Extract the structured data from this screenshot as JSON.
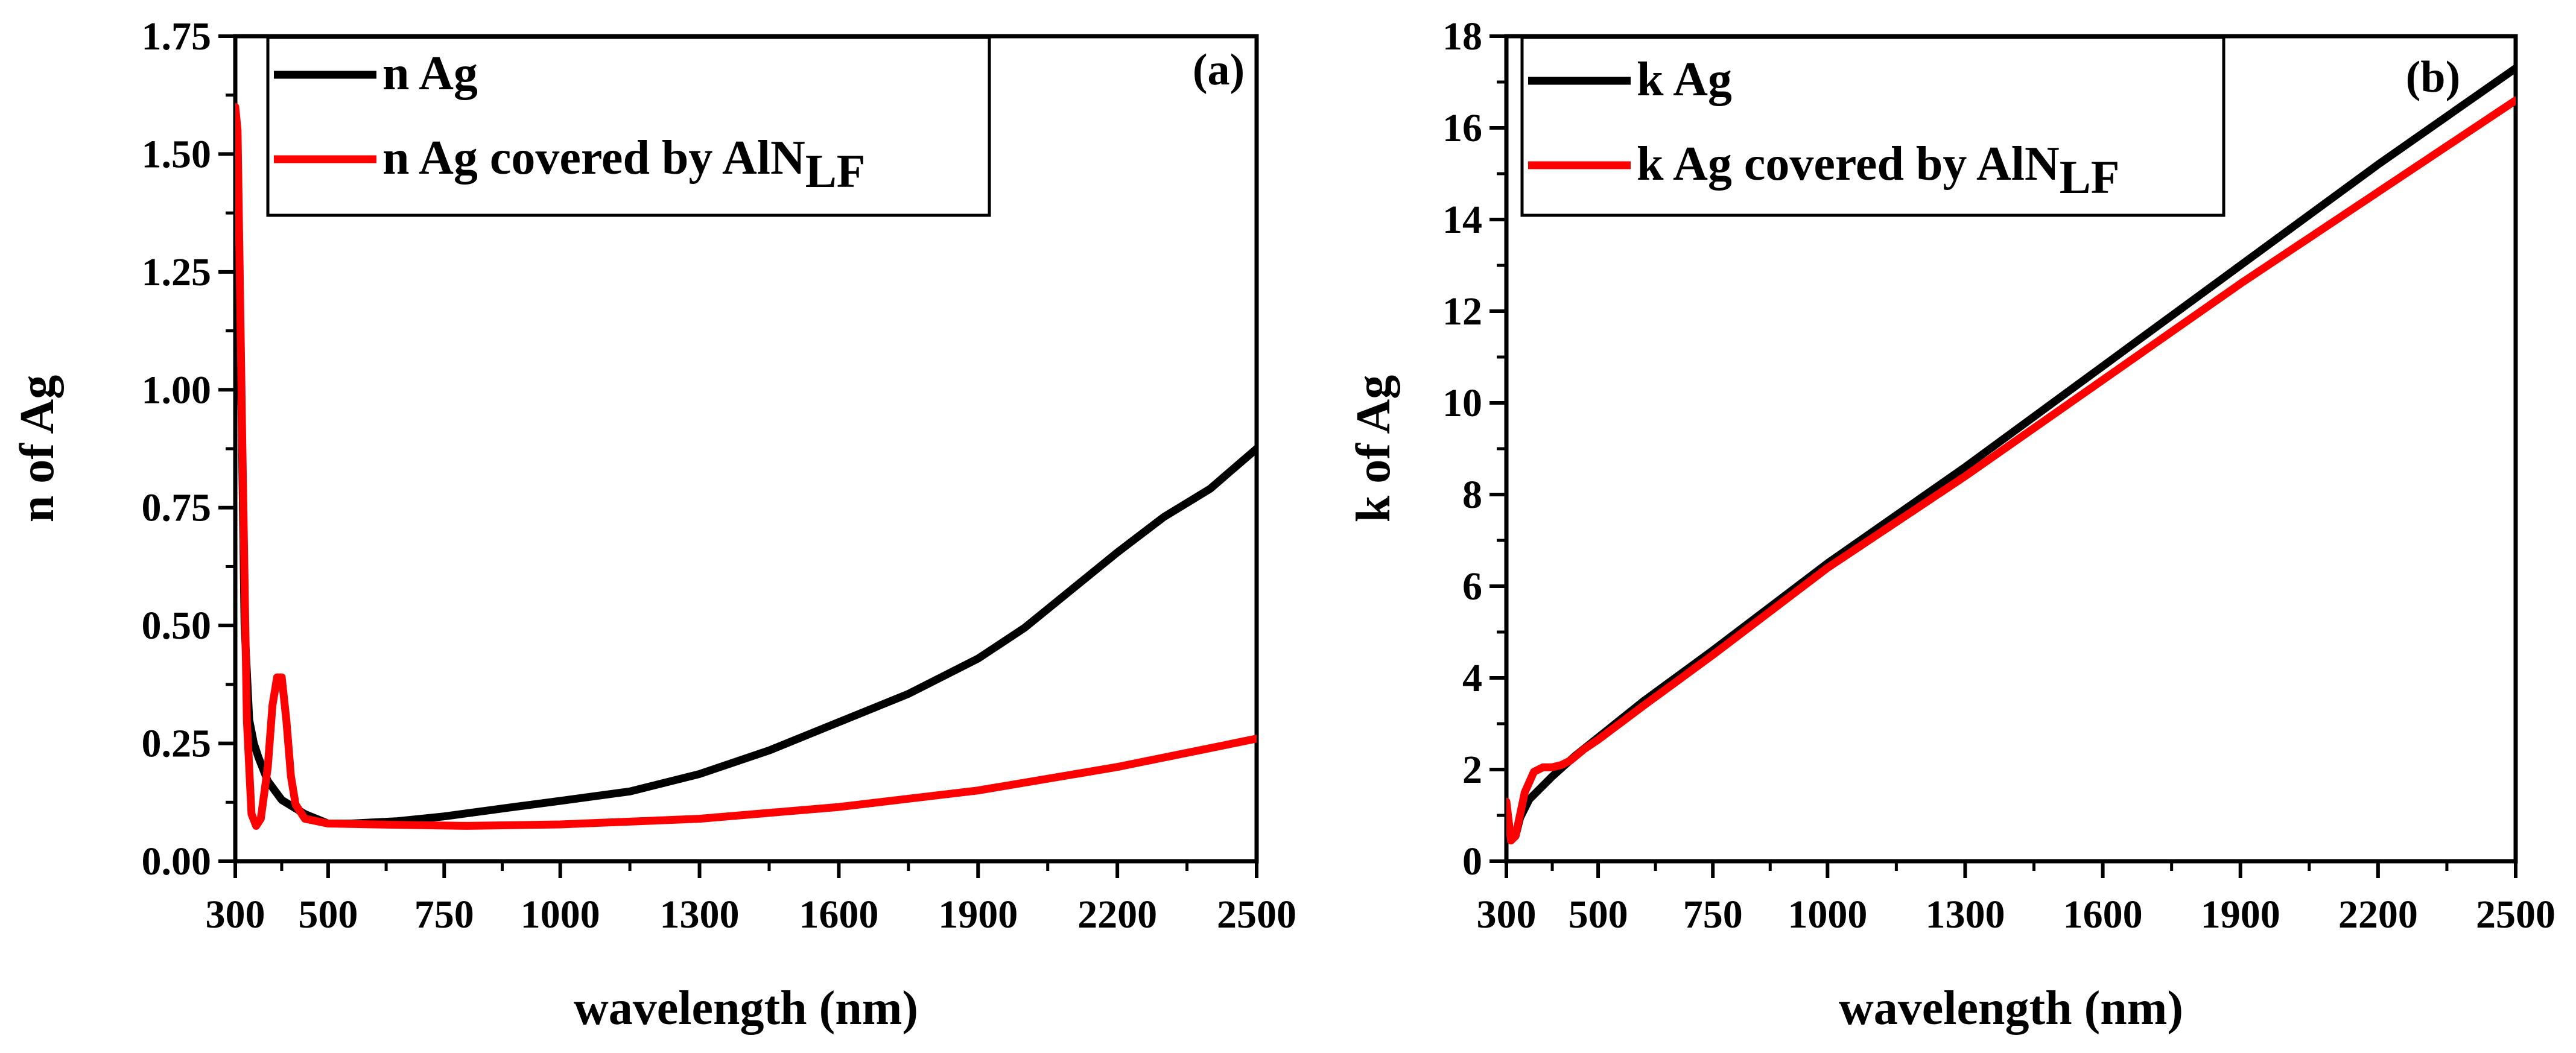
{
  "chart_data": [
    {
      "type": "line",
      "panel_label": "(a)",
      "xlabel": "wavelength (nm)",
      "ylabel": "n of Ag",
      "xlim": [
        300,
        2500
      ],
      "ylim": [
        0,
        1.75
      ],
      "xticks": [
        300,
        500,
        750,
        1000,
        1300,
        1600,
        1900,
        2200,
        2500
      ],
      "yticks": [
        "0.00",
        "0.25",
        "0.50",
        "0.75",
        "1.00",
        "1.25",
        "1.50",
        "1.75"
      ],
      "legend_position": "top-left",
      "series": [
        {
          "name": "n Ag",
          "color": "#000000",
          "points": [
            [
              300,
              1.58
            ],
            [
              310,
              1.2
            ],
            [
              320,
              0.5
            ],
            [
              330,
              0.3
            ],
            [
              340,
              0.25
            ],
            [
              350,
              0.22
            ],
            [
              370,
              0.17
            ],
            [
              400,
              0.13
            ],
            [
              450,
              0.1
            ],
            [
              500,
              0.08
            ],
            [
              550,
              0.08
            ],
            [
              650,
              0.085
            ],
            [
              750,
              0.095
            ],
            [
              900,
              0.115
            ],
            [
              1000,
              0.128
            ],
            [
              1150,
              0.148
            ],
            [
              1300,
              0.185
            ],
            [
              1450,
              0.235
            ],
            [
              1600,
              0.295
            ],
            [
              1750,
              0.355
            ],
            [
              1900,
              0.43
            ],
            [
              2000,
              0.495
            ],
            [
              2100,
              0.575
            ],
            [
              2200,
              0.655
            ],
            [
              2300,
              0.73
            ],
            [
              2400,
              0.79
            ],
            [
              2500,
              0.875
            ]
          ]
        },
        {
          "name": "n Ag covered by AlN",
          "name_subscript": "LF",
          "color": "#ff0000",
          "points": [
            [
              300,
              1.6
            ],
            [
              305,
              1.55
            ],
            [
              315,
              0.9
            ],
            [
              325,
              0.3
            ],
            [
              335,
              0.1
            ],
            [
              345,
              0.075
            ],
            [
              355,
              0.09
            ],
            [
              370,
              0.2
            ],
            [
              380,
              0.33
            ],
            [
              390,
              0.39
            ],
            [
              400,
              0.39
            ],
            [
              410,
              0.3
            ],
            [
              420,
              0.18
            ],
            [
              430,
              0.12
            ],
            [
              450,
              0.09
            ],
            [
              500,
              0.08
            ],
            [
              600,
              0.078
            ],
            [
              800,
              0.075
            ],
            [
              1000,
              0.078
            ],
            [
              1300,
              0.09
            ],
            [
              1600,
              0.115
            ],
            [
              1900,
              0.15
            ],
            [
              2200,
              0.2
            ],
            [
              2500,
              0.26
            ]
          ]
        }
      ]
    },
    {
      "type": "line",
      "panel_label": "(b)",
      "xlabel": "wavelength (nm)",
      "ylabel": "k of Ag",
      "xlim": [
        300,
        2500
      ],
      "ylim": [
        0,
        18
      ],
      "xticks": [
        300,
        500,
        750,
        1000,
        1300,
        1600,
        1900,
        2200,
        2500
      ],
      "yticks": [
        "0",
        "2",
        "4",
        "6",
        "8",
        "10",
        "12",
        "14",
        "16",
        "18"
      ],
      "legend_position": "top-left",
      "series": [
        {
          "name": "k Ag",
          "color": "#000000",
          "points": [
            [
              300,
              1.2
            ],
            [
              310,
              0.5
            ],
            [
              320,
              0.55
            ],
            [
              330,
              0.95
            ],
            [
              350,
              1.35
            ],
            [
              370,
              1.55
            ],
            [
              400,
              1.85
            ],
            [
              450,
              2.3
            ],
            [
              500,
              2.7
            ],
            [
              600,
              3.5
            ],
            [
              750,
              4.6
            ],
            [
              1000,
              6.5
            ],
            [
              1300,
              8.6
            ],
            [
              1600,
              10.8
            ],
            [
              1900,
              13.0
            ],
            [
              2200,
              15.2
            ],
            [
              2500,
              17.3
            ]
          ]
        },
        {
          "name": "k Ag covered by AlN",
          "name_subscript": "LF",
          "color": "#ff0000",
          "points": [
            [
              300,
              1.3
            ],
            [
              310,
              0.45
            ],
            [
              320,
              0.55
            ],
            [
              340,
              1.5
            ],
            [
              360,
              1.95
            ],
            [
              380,
              2.05
            ],
            [
              400,
              2.05
            ],
            [
              420,
              2.1
            ],
            [
              440,
              2.2
            ],
            [
              470,
              2.45
            ],
            [
              500,
              2.65
            ],
            [
              600,
              3.4
            ],
            [
              750,
              4.5
            ],
            [
              1000,
              6.4
            ],
            [
              1300,
              8.4
            ],
            [
              1600,
              10.5
            ],
            [
              1900,
              12.6
            ],
            [
              2200,
              14.6
            ],
            [
              2500,
              16.6
            ]
          ]
        }
      ]
    }
  ]
}
